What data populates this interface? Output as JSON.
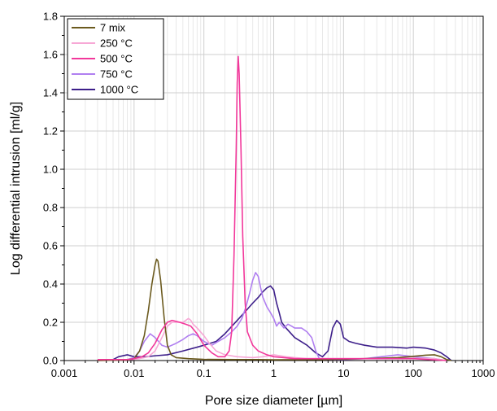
{
  "chart_data": {
    "type": "line",
    "xscale": "log",
    "xlabel": "Pore size diameter [µm]",
    "ylabel": "Log differential intrusion [ml/g]",
    "xlim": [
      0.001,
      1000
    ],
    "ylim": [
      0,
      1.8
    ],
    "xticks": [
      {
        "value": 0.001,
        "label": "0.001"
      },
      {
        "value": 0.01,
        "label": "0.01"
      },
      {
        "value": 0.1,
        "label": "0.1"
      },
      {
        "value": 1,
        "label": "1"
      },
      {
        "value": 10,
        "label": "10"
      },
      {
        "value": 100,
        "label": "100"
      },
      {
        "value": 1000,
        "label": "1000"
      }
    ],
    "yticks": [
      {
        "value": 0.0,
        "label": "0.0"
      },
      {
        "value": 0.2,
        "label": "0.2"
      },
      {
        "value": 0.4,
        "label": "0.4"
      },
      {
        "value": 0.6,
        "label": "0.6"
      },
      {
        "value": 0.8,
        "label": "0.8"
      },
      {
        "value": 1.0,
        "label": "1.0"
      },
      {
        "value": 1.2,
        "label": "1.2"
      },
      {
        "value": 1.4,
        "label": "1.4"
      },
      {
        "value": 1.6,
        "label": "1.6"
      },
      {
        "value": 1.8,
        "label": "1.8"
      }
    ],
    "grid": true,
    "legend_position": "top-left",
    "series": [
      {
        "name": "7 mix",
        "color": "#6b5a1e",
        "points": [
          [
            0.003,
            0
          ],
          [
            0.008,
            0.003
          ],
          [
            0.01,
            0.01
          ],
          [
            0.012,
            0.05
          ],
          [
            0.014,
            0.13
          ],
          [
            0.016,
            0.26
          ],
          [
            0.018,
            0.4
          ],
          [
            0.02,
            0.5
          ],
          [
            0.021,
            0.53
          ],
          [
            0.022,
            0.52
          ],
          [
            0.024,
            0.42
          ],
          [
            0.027,
            0.22
          ],
          [
            0.03,
            0.08
          ],
          [
            0.034,
            0.03
          ],
          [
            0.04,
            0.015
          ],
          [
            0.06,
            0.01
          ],
          [
            0.1,
            0.006
          ],
          [
            0.3,
            0.005
          ],
          [
            0.6,
            0.005
          ],
          [
            1,
            0.004
          ],
          [
            5,
            0.005
          ],
          [
            20,
            0.01
          ],
          [
            60,
            0.015
          ],
          [
            100,
            0.022
          ],
          [
            150,
            0.028
          ],
          [
            200,
            0.03
          ],
          [
            250,
            0.02
          ],
          [
            300,
            0.005
          ],
          [
            350,
            0
          ]
        ]
      },
      {
        "name": "250 °C",
        "color": "#f7a8d6",
        "points": [
          [
            0.003,
            0
          ],
          [
            0.008,
            0.003
          ],
          [
            0.012,
            0.01
          ],
          [
            0.016,
            0.02
          ],
          [
            0.02,
            0.05
          ],
          [
            0.025,
            0.12
          ],
          [
            0.03,
            0.18
          ],
          [
            0.035,
            0.2
          ],
          [
            0.04,
            0.2
          ],
          [
            0.05,
            0.2
          ],
          [
            0.055,
            0.21
          ],
          [
            0.06,
            0.22
          ],
          [
            0.065,
            0.21
          ],
          [
            0.07,
            0.19
          ],
          [
            0.08,
            0.17
          ],
          [
            0.1,
            0.13
          ],
          [
            0.12,
            0.09
          ],
          [
            0.15,
            0.05
          ],
          [
            0.2,
            0.03
          ],
          [
            0.3,
            0.02
          ],
          [
            0.5,
            0.015
          ],
          [
            0.7,
            0.02
          ],
          [
            1,
            0.03
          ],
          [
            1.5,
            0.02
          ],
          [
            2,
            0.015
          ],
          [
            3,
            0.01
          ],
          [
            5,
            0.01
          ],
          [
            10,
            0.01
          ],
          [
            30,
            0.01
          ],
          [
            60,
            0.015
          ],
          [
            100,
            0.012
          ],
          [
            200,
            0.01
          ],
          [
            300,
            0
          ]
        ]
      },
      {
        "name": "500 °C",
        "color": "#f2389b",
        "points": [
          [
            0.003,
            0.005
          ],
          [
            0.008,
            0.005
          ],
          [
            0.01,
            0.01
          ],
          [
            0.013,
            0.02
          ],
          [
            0.016,
            0.04
          ],
          [
            0.02,
            0.09
          ],
          [
            0.025,
            0.16
          ],
          [
            0.03,
            0.2
          ],
          [
            0.035,
            0.21
          ],
          [
            0.045,
            0.2
          ],
          [
            0.055,
            0.19
          ],
          [
            0.065,
            0.18
          ],
          [
            0.08,
            0.14
          ],
          [
            0.1,
            0.08
          ],
          [
            0.13,
            0.04
          ],
          [
            0.16,
            0.02
          ],
          [
            0.2,
            0.02
          ],
          [
            0.23,
            0.05
          ],
          [
            0.25,
            0.15
          ],
          [
            0.27,
            0.55
          ],
          [
            0.29,
            1.1
          ],
          [
            0.3,
            1.45
          ],
          [
            0.31,
            1.59
          ],
          [
            0.32,
            1.5
          ],
          [
            0.34,
            1.1
          ],
          [
            0.36,
            0.65
          ],
          [
            0.39,
            0.3
          ],
          [
            0.42,
            0.15
          ],
          [
            0.5,
            0.08
          ],
          [
            0.6,
            0.05
          ],
          [
            0.8,
            0.03
          ],
          [
            1,
            0.02
          ],
          [
            2,
            0.01
          ],
          [
            5,
            0.01
          ],
          [
            10,
            0.01
          ],
          [
            50,
            0.01
          ],
          [
            100,
            0.01
          ],
          [
            300,
            0
          ]
        ]
      },
      {
        "name": "750 °C",
        "color": "#b07ff0",
        "points": [
          [
            0.003,
            0
          ],
          [
            0.008,
            0.005
          ],
          [
            0.01,
            0.015
          ],
          [
            0.012,
            0.05
          ],
          [
            0.014,
            0.1
          ],
          [
            0.017,
            0.14
          ],
          [
            0.02,
            0.12
          ],
          [
            0.025,
            0.08
          ],
          [
            0.03,
            0.07
          ],
          [
            0.04,
            0.09
          ],
          [
            0.05,
            0.11
          ],
          [
            0.06,
            0.13
          ],
          [
            0.07,
            0.14
          ],
          [
            0.08,
            0.13
          ],
          [
            0.1,
            0.1
          ],
          [
            0.13,
            0.08
          ],
          [
            0.16,
            0.1
          ],
          [
            0.2,
            0.12
          ],
          [
            0.25,
            0.15
          ],
          [
            0.3,
            0.18
          ],
          [
            0.35,
            0.22
          ],
          [
            0.4,
            0.28
          ],
          [
            0.45,
            0.35
          ],
          [
            0.5,
            0.42
          ],
          [
            0.55,
            0.46
          ],
          [
            0.6,
            0.44
          ],
          [
            0.65,
            0.38
          ],
          [
            0.7,
            0.33
          ],
          [
            0.8,
            0.28
          ],
          [
            0.9,
            0.25
          ],
          [
            1,
            0.22
          ],
          [
            1.1,
            0.18
          ],
          [
            1.2,
            0.2
          ],
          [
            1.4,
            0.17
          ],
          [
            1.6,
            0.19
          ],
          [
            1.8,
            0.18
          ],
          [
            2,
            0.17
          ],
          [
            2.5,
            0.17
          ],
          [
            3,
            0.15
          ],
          [
            3.5,
            0.12
          ],
          [
            4,
            0.05
          ],
          [
            4.5,
            0.01
          ],
          [
            5,
            0.005
          ],
          [
            10,
            0.005
          ],
          [
            20,
            0.01
          ],
          [
            60,
            0.03
          ],
          [
            100,
            0.02
          ],
          [
            200,
            0.01
          ],
          [
            300,
            0
          ]
        ]
      },
      {
        "name": "1000 °C",
        "color": "#3d1f8a",
        "points": [
          [
            0.003,
            0
          ],
          [
            0.005,
            0.005
          ],
          [
            0.006,
            0.02
          ],
          [
            0.008,
            0.03
          ],
          [
            0.01,
            0.02
          ],
          [
            0.015,
            0.02
          ],
          [
            0.02,
            0.025
          ],
          [
            0.03,
            0.03
          ],
          [
            0.05,
            0.05
          ],
          [
            0.08,
            0.07
          ],
          [
            0.1,
            0.08
          ],
          [
            0.15,
            0.1
          ],
          [
            0.2,
            0.14
          ],
          [
            0.3,
            0.21
          ],
          [
            0.4,
            0.26
          ],
          [
            0.5,
            0.3
          ],
          [
            0.6,
            0.33
          ],
          [
            0.7,
            0.36
          ],
          [
            0.8,
            0.38
          ],
          [
            0.9,
            0.39
          ],
          [
            1,
            0.37
          ],
          [
            1.1,
            0.3
          ],
          [
            1.2,
            0.25
          ],
          [
            1.3,
            0.2
          ],
          [
            1.5,
            0.17
          ],
          [
            2,
            0.12
          ],
          [
            3,
            0.08
          ],
          [
            4,
            0.04
          ],
          [
            5,
            0.02
          ],
          [
            6,
            0.05
          ],
          [
            7,
            0.17
          ],
          [
            8,
            0.21
          ],
          [
            9,
            0.19
          ],
          [
            10,
            0.12
          ],
          [
            12,
            0.1
          ],
          [
            15,
            0.09
          ],
          [
            20,
            0.08
          ],
          [
            30,
            0.07
          ],
          [
            50,
            0.07
          ],
          [
            80,
            0.065
          ],
          [
            100,
            0.07
          ],
          [
            150,
            0.065
          ],
          [
            200,
            0.055
          ],
          [
            250,
            0.04
          ],
          [
            300,
            0.02
          ],
          [
            350,
            0
          ]
        ]
      }
    ]
  }
}
